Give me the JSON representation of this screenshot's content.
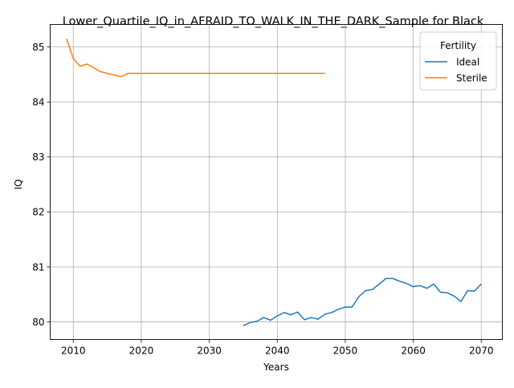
{
  "chart_data": {
    "type": "line",
    "title": "Lower_Quartile_IQ_in_AFRAID_TO_WALK_IN_THE_DARK_Sample for Black",
    "xlabel": "Years",
    "ylabel": "IQ",
    "xlim": [
      2006.6,
      2073.1
    ],
    "ylim": [
      79.68,
      85.41
    ],
    "xticks": [
      2010,
      2020,
      2030,
      2040,
      2050,
      2060,
      2070
    ],
    "yticks": [
      80,
      81,
      82,
      83,
      84,
      85
    ],
    "grid": true,
    "legend": {
      "title": "Fertility",
      "placement": "upper right"
    },
    "series": [
      {
        "name": "Ideal",
        "color": "#1f77b4",
        "x": [
          2035,
          2036,
          2037,
          2038,
          2039,
          2040,
          2041,
          2042,
          2043,
          2044,
          2045,
          2046,
          2047,
          2048,
          2049,
          2050,
          2051,
          2052,
          2053,
          2054,
          2055,
          2056,
          2057,
          2058,
          2059,
          2060,
          2061,
          2062,
          2063,
          2064,
          2065,
          2066,
          2067,
          2068,
          2069,
          2070
        ],
        "y": [
          79.93,
          79.99,
          80.01,
          80.08,
          80.03,
          80.11,
          80.17,
          80.13,
          80.18,
          80.04,
          80.08,
          80.05,
          80.14,
          80.17,
          80.23,
          80.27,
          80.27,
          80.46,
          80.57,
          80.59,
          80.69,
          80.79,
          80.79,
          80.74,
          80.7,
          80.64,
          80.66,
          80.61,
          80.69,
          80.54,
          80.53,
          80.47,
          80.37,
          80.57,
          80.56,
          80.69
        ]
      },
      {
        "name": "Sterile",
        "color": "#ff7f0e",
        "x": [
          2009,
          2010,
          2011,
          2012,
          2013,
          2014,
          2015,
          2016,
          2017,
          2018,
          2019,
          2020,
          2025,
          2030,
          2035,
          2040,
          2045,
          2047
        ],
        "y": [
          85.15,
          84.79,
          84.65,
          84.69,
          84.62,
          84.55,
          84.52,
          84.49,
          84.46,
          84.52,
          84.52,
          84.52,
          84.52,
          84.52,
          84.52,
          84.52,
          84.52,
          84.52
        ]
      }
    ]
  }
}
